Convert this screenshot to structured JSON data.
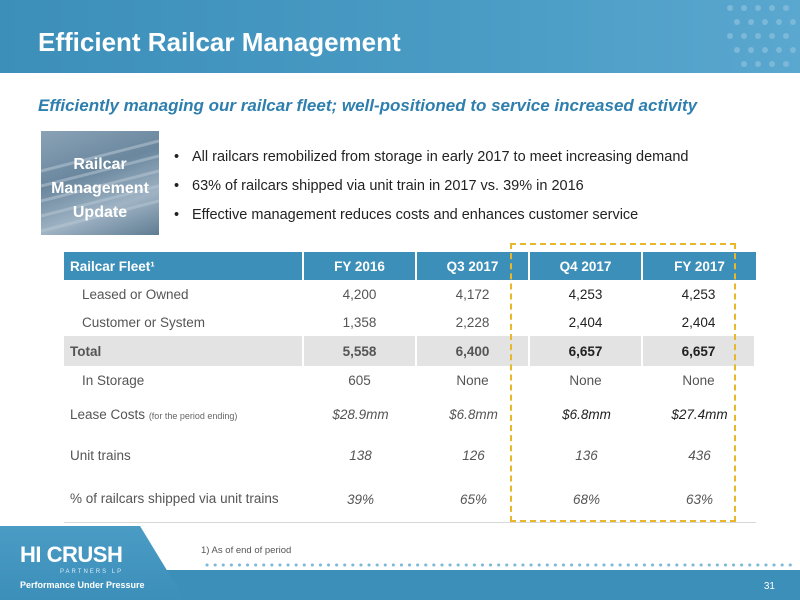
{
  "header": {
    "title": "Efficient Railcar Management"
  },
  "subtitle": "Efficiently managing our railcar fleet; well-positioned to service increased activity",
  "update_box": {
    "label": "Railcar\nManagement\nUpdate"
  },
  "bullets": [
    "All railcars remobilized from storage in early 2017 to meet increasing demand",
    "63% of railcars shipped via unit train in 2017 vs. 39% in 2016",
    "Effective management reduces costs and enhances customer service"
  ],
  "table": {
    "headers": [
      "Railcar Fleet¹",
      "FY 2016",
      "Q3 2017",
      "Q4 2017",
      "FY 2017"
    ],
    "rows": {
      "leased": {
        "label": "Leased or Owned",
        "values": [
          "4,200",
          "4,172",
          "4,253",
          "4,253"
        ]
      },
      "customer": {
        "label": "Customer or System",
        "values": [
          "1,358",
          "2,228",
          "2,404",
          "2,404"
        ]
      },
      "total": {
        "label": "Total",
        "values": [
          "5,558",
          "6,400",
          "6,657",
          "6,657"
        ]
      },
      "storage": {
        "label": "In Storage",
        "values": [
          "605",
          "None",
          "None",
          "None"
        ]
      },
      "lease_costs": {
        "label": "Lease Costs",
        "note": "(for the period ending)",
        "values": [
          "$28.9mm",
          "$6.8mm",
          "$6.8mm",
          "$27.4mm"
        ]
      },
      "unit_trains": {
        "label": "Unit trains",
        "values": [
          "138",
          "126",
          "136",
          "436"
        ]
      },
      "pct_unit": {
        "label": "% of railcars shipped via unit trains",
        "values": [
          "39%",
          "65%",
          "68%",
          "63%"
        ]
      }
    }
  },
  "footnote": "1)    As of end of period",
  "footer": {
    "logo": "HI CRUSH",
    "logo_sub": "PARTNERS LP",
    "tagline": "Performance Under Pressure",
    "page_number": "31"
  },
  "colors": {
    "brand_blue": "#3c8fb9",
    "subtitle_blue": "#2f7fae",
    "highlight": "#e8b82a",
    "total_row": "#e3e3e3"
  }
}
